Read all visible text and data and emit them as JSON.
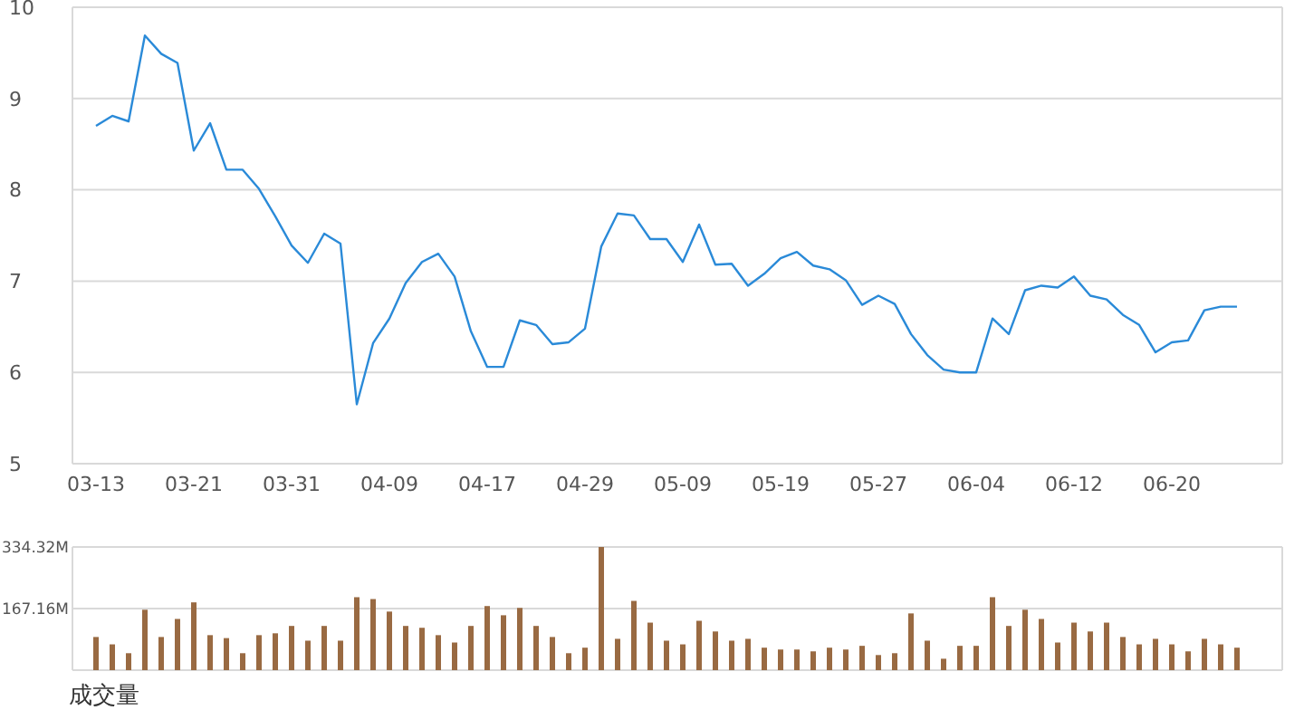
{
  "chart_data": [
    {
      "type": "line",
      "categories": [
        "03-13",
        null,
        null,
        null,
        null,
        null,
        "03-21",
        null,
        null,
        null,
        null,
        null,
        "03-31",
        null,
        null,
        null,
        null,
        null,
        "04-09",
        null,
        null,
        null,
        null,
        null,
        "04-17",
        null,
        null,
        null,
        null,
        null,
        "04-29",
        null,
        null,
        null,
        null,
        null,
        "05-09",
        null,
        null,
        null,
        null,
        null,
        "05-19",
        null,
        null,
        null,
        null,
        null,
        "05-27",
        null,
        null,
        null,
        null,
        null,
        "06-04",
        null,
        null,
        null,
        null,
        null,
        "06-12",
        null,
        null,
        null,
        null,
        null,
        "06-20",
        null,
        null,
        null,
        null
      ],
      "series": [
        {
          "color": "#2a8ad8",
          "values": [
            8.7,
            8.81,
            8.75,
            9.69,
            9.49,
            9.39,
            8.43,
            8.73,
            8.22,
            8.22,
            8.01,
            7.71,
            7.39,
            7.2,
            7.52,
            7.41,
            5.65,
            6.32,
            6.59,
            6.98,
            7.21,
            7.3,
            7.05,
            6.45,
            6.06,
            6.06,
            6.57,
            6.52,
            6.31,
            6.33,
            6.48,
            7.38,
            7.74,
            7.72,
            7.46,
            7.46,
            7.21,
            7.62,
            7.18,
            7.19,
            6.95,
            7.08,
            7.25,
            7.32,
            7.17,
            7.13,
            7.01,
            6.74,
            6.84,
            6.75,
            6.42,
            6.19,
            6.03,
            6.0,
            6.0,
            6.59,
            6.42,
            6.9,
            6.95,
            6.93,
            7.05,
            6.84,
            6.8,
            6.63,
            6.52,
            6.22,
            6.33,
            6.35,
            6.68,
            6.72,
            6.72
          ]
        }
      ],
      "ylim": [
        5,
        10
      ],
      "yticks": [
        5,
        6,
        7,
        8,
        9,
        10
      ],
      "grid": "y"
    },
    {
      "type": "bar",
      "xlabel": "成交量",
      "categories": [
        null,
        null,
        null,
        null,
        null,
        null,
        null,
        null,
        null,
        null,
        null,
        null,
        null,
        null,
        null,
        null,
        null,
        null,
        null,
        null,
        null,
        null,
        null,
        null,
        null,
        null,
        null,
        null,
        null,
        null,
        null,
        null,
        null,
        null,
        null,
        null,
        null,
        null,
        null,
        null,
        null,
        null,
        null,
        null,
        null,
        null,
        null,
        null,
        null,
        null,
        null,
        null,
        null,
        null,
        null,
        null,
        null,
        null,
        null,
        null,
        null,
        null,
        null,
        null,
        null,
        null,
        null,
        null,
        null,
        null,
        null
      ],
      "series": [
        {
          "color": "#996a42",
          "values": [
            90,
            70,
            46,
            164,
            90,
            139,
            184,
            95,
            87,
            46,
            95,
            100,
            120,
            80,
            120,
            80,
            198,
            193,
            159,
            120,
            115,
            95,
            75,
            120,
            174,
            149,
            169,
            120,
            90,
            46,
            61,
            334.32,
            85,
            188,
            129,
            80,
            70,
            134,
            105,
            80,
            85,
            61,
            56,
            56,
            51,
            61,
            56,
            66,
            41,
            46,
            154,
            80,
            31,
            66,
            66,
            198,
            120,
            164,
            139,
            75,
            129,
            105,
            129,
            90,
            70,
            85,
            70,
            51,
            85,
            70,
            61
          ]
        }
      ],
      "ylim": [
        0,
        334.32
      ],
      "yticks": [
        {
          "value": 167.16,
          "label": "167.16M"
        },
        {
          "value": 334.32,
          "label": "334.32M"
        }
      ],
      "grid": "y",
      "tick_labels": "y"
    }
  ]
}
